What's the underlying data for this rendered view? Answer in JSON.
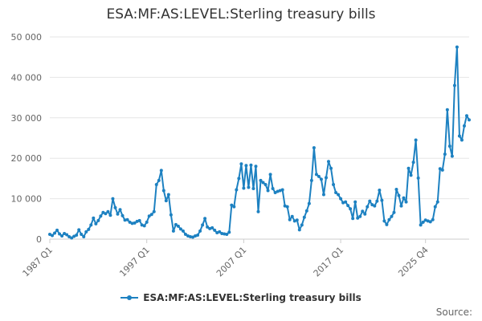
{
  "chart_data": {
    "type": "line",
    "title": "ESA:MF:AS:LEVEL:Sterling treasury bills",
    "xlabel": "",
    "ylabel": "",
    "ylim": [
      0,
      50000
    ],
    "yticks": [
      0,
      10000,
      20000,
      30000,
      40000,
      50000
    ],
    "ytick_labels": [
      "0",
      "10 000",
      "20 000",
      "30 000",
      "40 000",
      "50 000"
    ],
    "xtick_labels": [
      "1987 Q1",
      "1997 Q1",
      "2007 Q1",
      "2017 Q1",
      "2025 Q4"
    ],
    "grid": true,
    "legend_position": "bottom-center",
    "series": [
      {
        "name": "ESA:MF:AS:LEVEL:Sterling treasury bills",
        "color": "#1d81c1",
        "start": "1987 Q1",
        "values": [
          1200,
          900,
          1500,
          2200,
          1300,
          800,
          1400,
          1100,
          600,
          300,
          700,
          1000,
          2300,
          1200,
          600,
          1800,
          2400,
          3500,
          5200,
          3800,
          4600,
          5700,
          6600,
          6300,
          6800,
          5900,
          10000,
          7800,
          6200,
          7300,
          5800,
          4700,
          4800,
          4200,
          3900,
          4000,
          4400,
          4600,
          3500,
          3300,
          4200,
          5700,
          6100,
          6800,
          13500,
          14500,
          17000,
          12000,
          9500,
          11000,
          6000,
          2000,
          3600,
          3200,
          2500,
          2000,
          1200,
          800,
          600,
          500,
          800,
          1000,
          2000,
          3500,
          5100,
          3000,
          2600,
          2800,
          2200,
          1600,
          1800,
          1400,
          1300,
          1200,
          1700,
          8400,
          8000,
          12200,
          15000,
          18600,
          12600,
          18200,
          12800,
          18300,
          12500,
          18000,
          6800,
          14500,
          14000,
          13500,
          12000,
          16000,
          12500,
          11500,
          11800,
          12000,
          12200,
          8200,
          8000,
          4800,
          5600,
          4500,
          4700,
          2300,
          3500,
          5400,
          7000,
          8800,
          14500,
          22600,
          16000,
          15500,
          14800,
          11000,
          15200,
          19200,
          17500,
          13500,
          11500,
          11000,
          10000,
          9000,
          9200,
          8300,
          7500,
          5100,
          9200,
          5200,
          5600,
          6900,
          6200,
          8000,
          9400,
          8500,
          8200,
          9400,
          12100,
          9600,
          4500,
          3600,
          4800,
          5600,
          6600,
          12300,
          10800,
          8200,
          10200,
          9200,
          17500,
          15800,
          19000,
          24500,
          15100,
          3500,
          4200,
          4700,
          4500,
          4300,
          4800,
          8000,
          9200,
          17400,
          17100,
          21000,
          32000,
          23000,
          20500,
          38000,
          47500,
          25500,
          24500,
          28000,
          30500,
          29500
        ]
      }
    ]
  },
  "legend": {
    "label": "ESA:MF:AS:LEVEL:Sterling treasury bills"
  },
  "source_label": "Source:"
}
